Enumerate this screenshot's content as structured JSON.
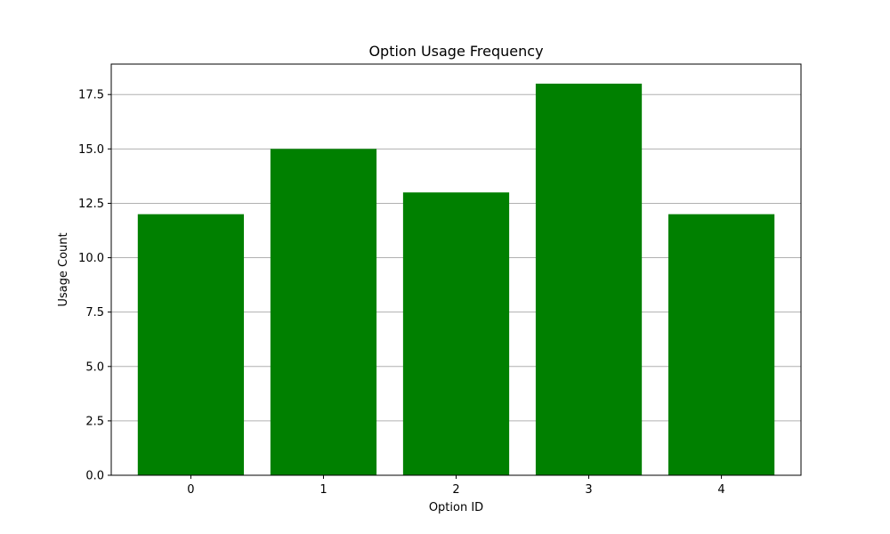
{
  "chart_data": {
    "type": "bar",
    "title": "Option Usage Frequency",
    "xlabel": "Option ID",
    "ylabel": "Usage Count",
    "categories": [
      "0",
      "1",
      "2",
      "3",
      "4"
    ],
    "values": [
      12,
      15,
      13,
      18,
      12
    ],
    "ylim": [
      0,
      18.9
    ],
    "yticks": [
      "0.0",
      "2.5",
      "5.0",
      "7.5",
      "10.0",
      "12.5",
      "15.0",
      "17.5"
    ],
    "grid": "y",
    "legend": "none",
    "colors": {
      "bar": "#008000",
      "grid": "#b0b0b0",
      "axis": "#000000"
    }
  }
}
